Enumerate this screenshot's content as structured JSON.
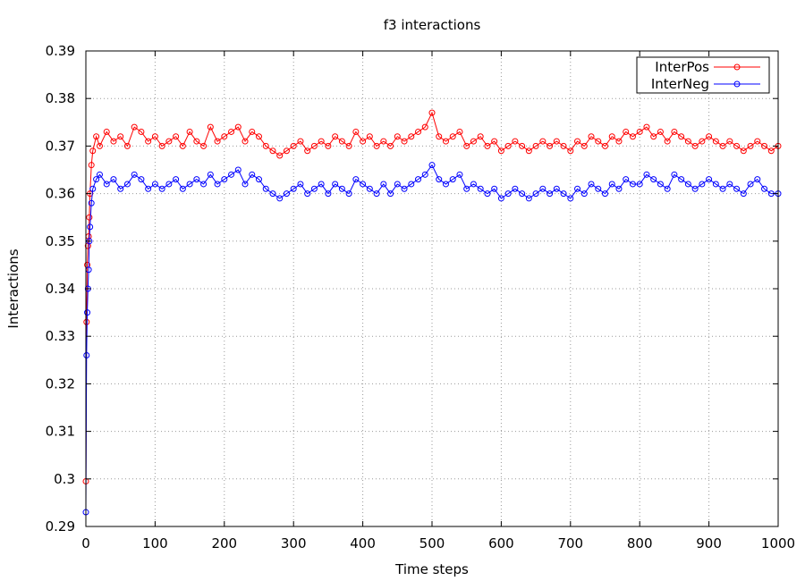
{
  "chart_data": {
    "type": "line",
    "title": "f3 interactions",
    "xlabel": "Time steps",
    "ylabel": "Interactions",
    "xlim": [
      0,
      1000
    ],
    "ylim": [
      0.29,
      0.39
    ],
    "xticks": [
      "0",
      "100",
      "200",
      "300",
      "400",
      "500",
      "600",
      "700",
      "800",
      "900",
      "1000"
    ],
    "yticks": [
      "0.29",
      "0.3",
      "0.31",
      "0.32",
      "0.33",
      "0.34",
      "0.35",
      "0.36",
      "0.37",
      "0.38",
      "0.39"
    ],
    "grid": true,
    "legend_position": "top-right",
    "series": [
      {
        "name": "InterPos",
        "color": "#ff0000",
        "marker": "circle",
        "x": [
          0,
          1,
          2,
          3,
          4,
          5,
          6,
          8,
          10,
          15,
          20,
          30,
          40,
          50,
          60,
          70,
          80,
          90,
          100,
          110,
          120,
          130,
          140,
          150,
          160,
          170,
          180,
          190,
          200,
          210,
          220,
          230,
          240,
          250,
          260,
          270,
          280,
          290,
          300,
          310,
          320,
          330,
          340,
          350,
          360,
          370,
          380,
          390,
          400,
          410,
          420,
          430,
          440,
          450,
          460,
          470,
          480,
          490,
          500,
          510,
          520,
          530,
          540,
          550,
          560,
          570,
          580,
          590,
          600,
          610,
          620,
          630,
          640,
          650,
          660,
          670,
          680,
          690,
          700,
          710,
          720,
          730,
          740,
          750,
          760,
          770,
          780,
          790,
          800,
          810,
          820,
          830,
          840,
          850,
          860,
          870,
          880,
          890,
          900,
          910,
          920,
          930,
          940,
          950,
          960,
          970,
          980,
          990,
          1000
        ],
        "y": [
          0.2995,
          0.333,
          0.345,
          0.349,
          0.351,
          0.355,
          0.36,
          0.366,
          0.369,
          0.372,
          0.37,
          0.373,
          0.371,
          0.372,
          0.37,
          0.374,
          0.373,
          0.371,
          0.372,
          0.37,
          0.371,
          0.372,
          0.37,
          0.373,
          0.371,
          0.37,
          0.374,
          0.371,
          0.372,
          0.373,
          0.374,
          0.371,
          0.373,
          0.372,
          0.37,
          0.369,
          0.368,
          0.369,
          0.37,
          0.371,
          0.369,
          0.37,
          0.371,
          0.37,
          0.372,
          0.371,
          0.37,
          0.373,
          0.371,
          0.372,
          0.37,
          0.371,
          0.37,
          0.372,
          0.371,
          0.372,
          0.373,
          0.374,
          0.377,
          0.372,
          0.371,
          0.372,
          0.373,
          0.37,
          0.371,
          0.372,
          0.37,
          0.371,
          0.369,
          0.37,
          0.371,
          0.37,
          0.369,
          0.37,
          0.371,
          0.37,
          0.371,
          0.37,
          0.369,
          0.371,
          0.37,
          0.372,
          0.371,
          0.37,
          0.372,
          0.371,
          0.373,
          0.372,
          0.373,
          0.374,
          0.372,
          0.373,
          0.371,
          0.373,
          0.372,
          0.371,
          0.37,
          0.371,
          0.372,
          0.371,
          0.37,
          0.371,
          0.37,
          0.369,
          0.37,
          0.371,
          0.37,
          0.369,
          0.37
        ]
      },
      {
        "name": "InterNeg",
        "color": "#0000ff",
        "marker": "circle",
        "x": [
          0,
          1,
          2,
          3,
          4,
          5,
          6,
          8,
          10,
          15,
          20,
          30,
          40,
          50,
          60,
          70,
          80,
          90,
          100,
          110,
          120,
          130,
          140,
          150,
          160,
          170,
          180,
          190,
          200,
          210,
          220,
          230,
          240,
          250,
          260,
          270,
          280,
          290,
          300,
          310,
          320,
          330,
          340,
          350,
          360,
          370,
          380,
          390,
          400,
          410,
          420,
          430,
          440,
          450,
          460,
          470,
          480,
          490,
          500,
          510,
          520,
          530,
          540,
          550,
          560,
          570,
          580,
          590,
          600,
          610,
          620,
          630,
          640,
          650,
          660,
          670,
          680,
          690,
          700,
          710,
          720,
          730,
          740,
          750,
          760,
          770,
          780,
          790,
          800,
          810,
          820,
          830,
          840,
          850,
          860,
          870,
          880,
          890,
          900,
          910,
          920,
          930,
          940,
          950,
          960,
          970,
          980,
          990,
          1000
        ],
        "y": [
          0.293,
          0.326,
          0.335,
          0.34,
          0.344,
          0.35,
          0.353,
          0.358,
          0.361,
          0.363,
          0.364,
          0.362,
          0.363,
          0.361,
          0.362,
          0.364,
          0.363,
          0.361,
          0.362,
          0.361,
          0.362,
          0.363,
          0.361,
          0.362,
          0.363,
          0.362,
          0.364,
          0.362,
          0.363,
          0.364,
          0.365,
          0.362,
          0.364,
          0.363,
          0.361,
          0.36,
          0.359,
          0.36,
          0.361,
          0.362,
          0.36,
          0.361,
          0.362,
          0.36,
          0.362,
          0.361,
          0.36,
          0.363,
          0.362,
          0.361,
          0.36,
          0.362,
          0.36,
          0.362,
          0.361,
          0.362,
          0.363,
          0.364,
          0.366,
          0.363,
          0.362,
          0.363,
          0.364,
          0.361,
          0.362,
          0.361,
          0.36,
          0.361,
          0.359,
          0.36,
          0.361,
          0.36,
          0.359,
          0.36,
          0.361,
          0.36,
          0.361,
          0.36,
          0.359,
          0.361,
          0.36,
          0.362,
          0.361,
          0.36,
          0.362,
          0.361,
          0.363,
          0.362,
          0.362,
          0.364,
          0.363,
          0.362,
          0.361,
          0.364,
          0.363,
          0.362,
          0.361,
          0.362,
          0.363,
          0.362,
          0.361,
          0.362,
          0.361,
          0.36,
          0.362,
          0.363,
          0.361,
          0.36,
          0.36
        ]
      }
    ]
  }
}
